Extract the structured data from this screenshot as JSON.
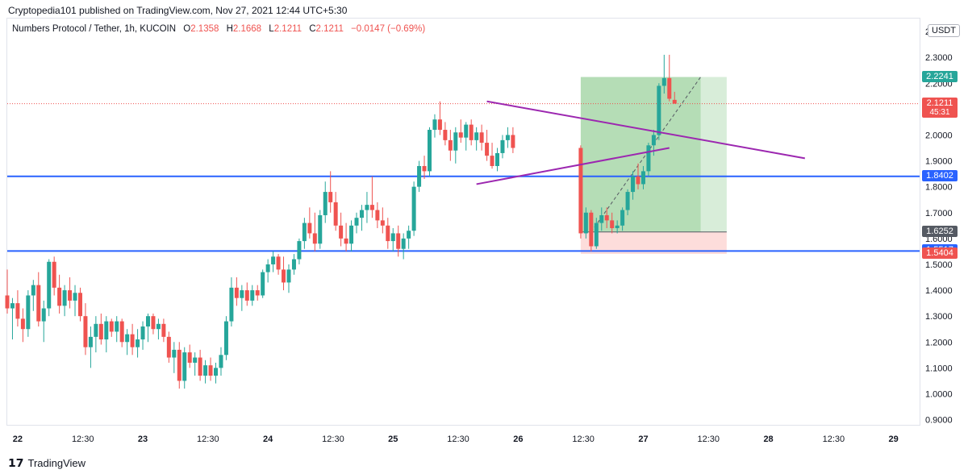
{
  "publish_line": "Cryptopedia101 published on TradingView.com, Nov 27, 2021 12:44 UTC+5:30",
  "legend": {
    "symbol": "Numbers Protocol / Tether, 1h, KUCOIN",
    "open_label": "O",
    "open": "2.1358",
    "high_label": "H",
    "high": "2.1668",
    "low_label": "L",
    "low": "2.1211",
    "close_label": "C",
    "close": "2.1211",
    "change": "−0.0147 (−0.69%)"
  },
  "currency_badge": "USDT",
  "footer": {
    "brand": "TradingView"
  },
  "colors": {
    "up": "#26a69a",
    "down": "#ef5350",
    "hline": "#2962ff",
    "triangle": "#9c27b0",
    "profit_zone": "#4caf50",
    "loss_zone": "#f44336",
    "tag_green": "#26a69a",
    "tag_gray": "#555a63",
    "tag_blue": "#2962ff",
    "tag_red": "#ef5350"
  },
  "price_tags": [
    {
      "label": "2.2241",
      "price": 2.2241,
      "kind": "green"
    },
    {
      "label": "2.1211",
      "sub": "45:31",
      "price": 2.1211,
      "kind": "red"
    },
    {
      "label": "1.8402",
      "price": 1.8402,
      "kind": "blue"
    },
    {
      "label": "1.6252",
      "price": 1.6252,
      "kind": "gray"
    },
    {
      "label": "1.5517",
      "price": 1.5517,
      "kind": "blue"
    },
    {
      "label": "1.5404",
      "price": 1.5404,
      "kind": "red"
    }
  ],
  "chart_data": {
    "type": "candlestick",
    "y_axis_ticks": [
      "2.4000",
      "2.3000",
      "2.2000",
      "2.1000",
      "2.0000",
      "1.9000",
      "1.8000",
      "1.7000",
      "1.6000",
      "1.5000",
      "1.4000",
      "1.3000",
      "1.2000",
      "1.1000",
      "1.0000",
      "0.9000"
    ],
    "y_tick_values": [
      2.4,
      2.3,
      2.2,
      2.1,
      2.0,
      1.9,
      1.8,
      1.7,
      1.6,
      1.5,
      1.4,
      1.3,
      1.2,
      1.1,
      1.0,
      0.9
    ],
    "ylim": [
      0.88,
      2.45
    ],
    "x_axis_labels": [
      "22",
      "12:30",
      "23",
      "12:30",
      "24",
      "12:30",
      "25",
      "12:30",
      "26",
      "12:30",
      "27",
      "12:30",
      "28",
      "12:30",
      "29"
    ],
    "x_label_hours": [
      0,
      12.5,
      24,
      36.5,
      48,
      60.5,
      72,
      84.5,
      96,
      108.5,
      120,
      132.5,
      144,
      156.5,
      168
    ],
    "x_range_hours": [
      -2,
      173
    ],
    "horizontal_lines": [
      1.8402,
      1.5517
    ],
    "last_price_line": 2.1211,
    "triangle_lines": [
      {
        "from": [
          90,
          2.13
        ],
        "to": [
          151,
          1.91
        ]
      },
      {
        "from": [
          88,
          1.81
        ],
        "to": [
          125,
          1.95
        ]
      }
    ],
    "position": {
      "start_hour": 108,
      "end_hour": 136,
      "entry": 1.6252,
      "target": 2.2241,
      "stop": 1.5404,
      "filled_end_hour": 131
    },
    "candles": [
      {
        "t": -2,
        "o": 1.38,
        "h": 1.48,
        "l": 1.31,
        "c": 1.33
      },
      {
        "t": -1,
        "o": 1.33,
        "h": 1.37,
        "l": 1.21,
        "c": 1.35
      },
      {
        "t": 0,
        "o": 1.35,
        "h": 1.4,
        "l": 1.26,
        "c": 1.29
      },
      {
        "t": 1,
        "o": 1.29,
        "h": 1.33,
        "l": 1.2,
        "c": 1.25
      },
      {
        "t": 2,
        "o": 1.25,
        "h": 1.4,
        "l": 1.22,
        "c": 1.38
      },
      {
        "t": 3,
        "o": 1.38,
        "h": 1.44,
        "l": 1.32,
        "c": 1.42
      },
      {
        "t": 4,
        "o": 1.42,
        "h": 1.47,
        "l": 1.26,
        "c": 1.28
      },
      {
        "t": 5,
        "o": 1.28,
        "h": 1.36,
        "l": 1.2,
        "c": 1.33
      },
      {
        "t": 6,
        "o": 1.33,
        "h": 1.52,
        "l": 1.3,
        "c": 1.51
      },
      {
        "t": 7,
        "o": 1.51,
        "h": 1.53,
        "l": 1.38,
        "c": 1.41
      },
      {
        "t": 8,
        "o": 1.41,
        "h": 1.46,
        "l": 1.31,
        "c": 1.34
      },
      {
        "t": 9,
        "o": 1.34,
        "h": 1.42,
        "l": 1.3,
        "c": 1.4
      },
      {
        "t": 10,
        "o": 1.4,
        "h": 1.45,
        "l": 1.33,
        "c": 1.36
      },
      {
        "t": 11,
        "o": 1.36,
        "h": 1.42,
        "l": 1.3,
        "c": 1.39
      },
      {
        "t": 12,
        "o": 1.39,
        "h": 1.41,
        "l": 1.28,
        "c": 1.3
      },
      {
        "t": 13,
        "o": 1.3,
        "h": 1.35,
        "l": 1.15,
        "c": 1.18
      },
      {
        "t": 14,
        "o": 1.18,
        "h": 1.26,
        "l": 1.1,
        "c": 1.22
      },
      {
        "t": 15,
        "o": 1.22,
        "h": 1.3,
        "l": 1.16,
        "c": 1.27
      },
      {
        "t": 16,
        "o": 1.27,
        "h": 1.31,
        "l": 1.19,
        "c": 1.21
      },
      {
        "t": 17,
        "o": 1.21,
        "h": 1.3,
        "l": 1.16,
        "c": 1.28
      },
      {
        "t": 18,
        "o": 1.28,
        "h": 1.29,
        "l": 1.22,
        "c": 1.24
      },
      {
        "t": 19,
        "o": 1.24,
        "h": 1.3,
        "l": 1.2,
        "c": 1.28
      },
      {
        "t": 20,
        "o": 1.28,
        "h": 1.29,
        "l": 1.18,
        "c": 1.2
      },
      {
        "t": 21,
        "o": 1.2,
        "h": 1.25,
        "l": 1.15,
        "c": 1.23
      },
      {
        "t": 22,
        "o": 1.23,
        "h": 1.27,
        "l": 1.15,
        "c": 1.18
      },
      {
        "t": 23,
        "o": 1.18,
        "h": 1.25,
        "l": 1.14,
        "c": 1.21
      },
      {
        "t": 24,
        "o": 1.21,
        "h": 1.28,
        "l": 1.17,
        "c": 1.26
      },
      {
        "t": 25,
        "o": 1.26,
        "h": 1.31,
        "l": 1.2,
        "c": 1.3
      },
      {
        "t": 26,
        "o": 1.3,
        "h": 1.31,
        "l": 1.23,
        "c": 1.25
      },
      {
        "t": 27,
        "o": 1.25,
        "h": 1.29,
        "l": 1.21,
        "c": 1.27
      },
      {
        "t": 28,
        "o": 1.27,
        "h": 1.29,
        "l": 1.2,
        "c": 1.22
      },
      {
        "t": 29,
        "o": 1.22,
        "h": 1.24,
        "l": 1.12,
        "c": 1.14
      },
      {
        "t": 30,
        "o": 1.14,
        "h": 1.2,
        "l": 1.08,
        "c": 1.17
      },
      {
        "t": 31,
        "o": 1.17,
        "h": 1.2,
        "l": 1.02,
        "c": 1.05
      },
      {
        "t": 32,
        "o": 1.05,
        "h": 1.18,
        "l": 1.02,
        "c": 1.16
      },
      {
        "t": 33,
        "o": 1.16,
        "h": 1.19,
        "l": 1.1,
        "c": 1.12
      },
      {
        "t": 34,
        "o": 1.12,
        "h": 1.16,
        "l": 1.07,
        "c": 1.14
      },
      {
        "t": 35,
        "o": 1.14,
        "h": 1.17,
        "l": 1.05,
        "c": 1.07
      },
      {
        "t": 36,
        "o": 1.07,
        "h": 1.13,
        "l": 1.04,
        "c": 1.11
      },
      {
        "t": 37,
        "o": 1.11,
        "h": 1.14,
        "l": 1.05,
        "c": 1.07
      },
      {
        "t": 38,
        "o": 1.07,
        "h": 1.12,
        "l": 1.04,
        "c": 1.1
      },
      {
        "t": 39,
        "o": 1.1,
        "h": 1.18,
        "l": 1.07,
        "c": 1.15
      },
      {
        "t": 40,
        "o": 1.15,
        "h": 1.3,
        "l": 1.13,
        "c": 1.28
      },
      {
        "t": 41,
        "o": 1.28,
        "h": 1.45,
        "l": 1.26,
        "c": 1.41
      },
      {
        "t": 42,
        "o": 1.41,
        "h": 1.45,
        "l": 1.34,
        "c": 1.37
      },
      {
        "t": 43,
        "o": 1.37,
        "h": 1.42,
        "l": 1.32,
        "c": 1.4
      },
      {
        "t": 44,
        "o": 1.4,
        "h": 1.43,
        "l": 1.34,
        "c": 1.36
      },
      {
        "t": 45,
        "o": 1.36,
        "h": 1.42,
        "l": 1.34,
        "c": 1.4
      },
      {
        "t": 46,
        "o": 1.4,
        "h": 1.42,
        "l": 1.36,
        "c": 1.38
      },
      {
        "t": 47,
        "o": 1.38,
        "h": 1.48,
        "l": 1.37,
        "c": 1.47
      },
      {
        "t": 48,
        "o": 1.47,
        "h": 1.52,
        "l": 1.43,
        "c": 1.5
      },
      {
        "t": 49,
        "o": 1.5,
        "h": 1.55,
        "l": 1.47,
        "c": 1.53
      },
      {
        "t": 50,
        "o": 1.53,
        "h": 1.54,
        "l": 1.46,
        "c": 1.48
      },
      {
        "t": 51,
        "o": 1.48,
        "h": 1.53,
        "l": 1.4,
        "c": 1.43
      },
      {
        "t": 52,
        "o": 1.43,
        "h": 1.5,
        "l": 1.39,
        "c": 1.48
      },
      {
        "t": 53,
        "o": 1.48,
        "h": 1.54,
        "l": 1.46,
        "c": 1.52
      },
      {
        "t": 54,
        "o": 1.52,
        "h": 1.6,
        "l": 1.5,
        "c": 1.59
      },
      {
        "t": 55,
        "o": 1.59,
        "h": 1.68,
        "l": 1.56,
        "c": 1.66
      },
      {
        "t": 56,
        "o": 1.66,
        "h": 1.72,
        "l": 1.6,
        "c": 1.62
      },
      {
        "t": 57,
        "o": 1.62,
        "h": 1.7,
        "l": 1.55,
        "c": 1.58
      },
      {
        "t": 58,
        "o": 1.58,
        "h": 1.71,
        "l": 1.56,
        "c": 1.69
      },
      {
        "t": 59,
        "o": 1.69,
        "h": 1.82,
        "l": 1.66,
        "c": 1.78
      },
      {
        "t": 60,
        "o": 1.78,
        "h": 1.86,
        "l": 1.7,
        "c": 1.74
      },
      {
        "t": 61,
        "o": 1.74,
        "h": 1.78,
        "l": 1.63,
        "c": 1.65
      },
      {
        "t": 62,
        "o": 1.65,
        "h": 1.7,
        "l": 1.57,
        "c": 1.6
      },
      {
        "t": 63,
        "o": 1.6,
        "h": 1.66,
        "l": 1.55,
        "c": 1.58
      },
      {
        "t": 64,
        "o": 1.58,
        "h": 1.67,
        "l": 1.55,
        "c": 1.65
      },
      {
        "t": 65,
        "o": 1.65,
        "h": 1.7,
        "l": 1.62,
        "c": 1.68
      },
      {
        "t": 66,
        "o": 1.68,
        "h": 1.73,
        "l": 1.63,
        "c": 1.71
      },
      {
        "t": 67,
        "o": 1.71,
        "h": 1.78,
        "l": 1.66,
        "c": 1.73
      },
      {
        "t": 68,
        "o": 1.73,
        "h": 1.84,
        "l": 1.68,
        "c": 1.71
      },
      {
        "t": 69,
        "o": 1.71,
        "h": 1.74,
        "l": 1.64,
        "c": 1.67
      },
      {
        "t": 70,
        "o": 1.67,
        "h": 1.72,
        "l": 1.62,
        "c": 1.65
      },
      {
        "t": 71,
        "o": 1.65,
        "h": 1.68,
        "l": 1.56,
        "c": 1.59
      },
      {
        "t": 72,
        "o": 1.59,
        "h": 1.64,
        "l": 1.55,
        "c": 1.62
      },
      {
        "t": 73,
        "o": 1.62,
        "h": 1.65,
        "l": 1.53,
        "c": 1.56
      },
      {
        "t": 74,
        "o": 1.56,
        "h": 1.62,
        "l": 1.52,
        "c": 1.6
      },
      {
        "t": 75,
        "o": 1.6,
        "h": 1.65,
        "l": 1.56,
        "c": 1.63
      },
      {
        "t": 76,
        "o": 1.63,
        "h": 1.82,
        "l": 1.61,
        "c": 1.8
      },
      {
        "t": 77,
        "o": 1.8,
        "h": 1.9,
        "l": 1.78,
        "c": 1.88
      },
      {
        "t": 78,
        "o": 1.88,
        "h": 1.92,
        "l": 1.83,
        "c": 1.86
      },
      {
        "t": 79,
        "o": 1.86,
        "h": 2.03,
        "l": 1.84,
        "c": 2.02
      },
      {
        "t": 80,
        "o": 2.02,
        "h": 2.08,
        "l": 1.99,
        "c": 2.06
      },
      {
        "t": 81,
        "o": 2.06,
        "h": 2.13,
        "l": 2.0,
        "c": 2.02
      },
      {
        "t": 82,
        "o": 2.02,
        "h": 2.05,
        "l": 1.96,
        "c": 1.98
      },
      {
        "t": 83,
        "o": 1.98,
        "h": 2.02,
        "l": 1.9,
        "c": 1.94
      },
      {
        "t": 84,
        "o": 1.94,
        "h": 2.03,
        "l": 1.89,
        "c": 2.01
      },
      {
        "t": 85,
        "o": 2.01,
        "h": 2.06,
        "l": 1.97,
        "c": 1.99
      },
      {
        "t": 86,
        "o": 1.99,
        "h": 2.05,
        "l": 1.94,
        "c": 2.04
      },
      {
        "t": 87,
        "o": 2.04,
        "h": 2.06,
        "l": 1.96,
        "c": 1.98
      },
      {
        "t": 88,
        "o": 1.98,
        "h": 2.03,
        "l": 1.94,
        "c": 2.01
      },
      {
        "t": 89,
        "o": 2.01,
        "h": 2.04,
        "l": 1.94,
        "c": 1.97
      },
      {
        "t": 90,
        "o": 1.97,
        "h": 2.02,
        "l": 1.9,
        "c": 1.92
      },
      {
        "t": 91,
        "o": 1.92,
        "h": 1.97,
        "l": 1.87,
        "c": 1.88
      },
      {
        "t": 92,
        "o": 1.88,
        "h": 1.95,
        "l": 1.86,
        "c": 1.93
      },
      {
        "t": 93,
        "o": 1.93,
        "h": 2.0,
        "l": 1.91,
        "c": 1.98
      },
      {
        "t": 94,
        "o": 1.98,
        "h": 2.03,
        "l": 1.95,
        "c": 2.0
      },
      {
        "t": 95,
        "o": 2.0,
        "h": 2.03,
        "l": 1.93,
        "c": 1.95
      },
      {
        "t": 108,
        "o": 1.95,
        "h": 1.96,
        "l": 1.6,
        "c": 1.62
      },
      {
        "t": 109,
        "o": 1.62,
        "h": 1.72,
        "l": 1.6,
        "c": 1.7
      },
      {
        "t": 110,
        "o": 1.7,
        "h": 1.71,
        "l": 1.55,
        "c": 1.57
      },
      {
        "t": 111,
        "o": 1.57,
        "h": 1.68,
        "l": 1.56,
        "c": 1.66
      },
      {
        "t": 112,
        "o": 1.66,
        "h": 1.72,
        "l": 1.63,
        "c": 1.69
      },
      {
        "t": 113,
        "o": 1.69,
        "h": 1.72,
        "l": 1.64,
        "c": 1.67
      },
      {
        "t": 114,
        "o": 1.67,
        "h": 1.7,
        "l": 1.62,
        "c": 1.64
      },
      {
        "t": 115,
        "o": 1.64,
        "h": 1.67,
        "l": 1.62,
        "c": 1.65
      },
      {
        "t": 116,
        "o": 1.65,
        "h": 1.72,
        "l": 1.63,
        "c": 1.71
      },
      {
        "t": 117,
        "o": 1.71,
        "h": 1.79,
        "l": 1.69,
        "c": 1.78
      },
      {
        "t": 118,
        "o": 1.78,
        "h": 1.86,
        "l": 1.75,
        "c": 1.84
      },
      {
        "t": 119,
        "o": 1.84,
        "h": 1.89,
        "l": 1.79,
        "c": 1.81
      },
      {
        "t": 120,
        "o": 1.81,
        "h": 1.88,
        "l": 1.79,
        "c": 1.86
      },
      {
        "t": 121,
        "o": 1.86,
        "h": 1.97,
        "l": 1.84,
        "c": 1.96
      },
      {
        "t": 122,
        "o": 1.96,
        "h": 2.02,
        "l": 1.92,
        "c": 2.0
      },
      {
        "t": 123,
        "o": 2.0,
        "h": 2.2,
        "l": 1.98,
        "c": 2.19
      },
      {
        "t": 124,
        "o": 2.19,
        "h": 2.31,
        "l": 2.16,
        "c": 2.22
      },
      {
        "t": 125,
        "o": 2.22,
        "h": 2.31,
        "l": 2.13,
        "c": 2.14
      },
      {
        "t": 126,
        "o": 2.1358,
        "h": 2.1668,
        "l": 2.1211,
        "c": 2.1211
      }
    ]
  }
}
